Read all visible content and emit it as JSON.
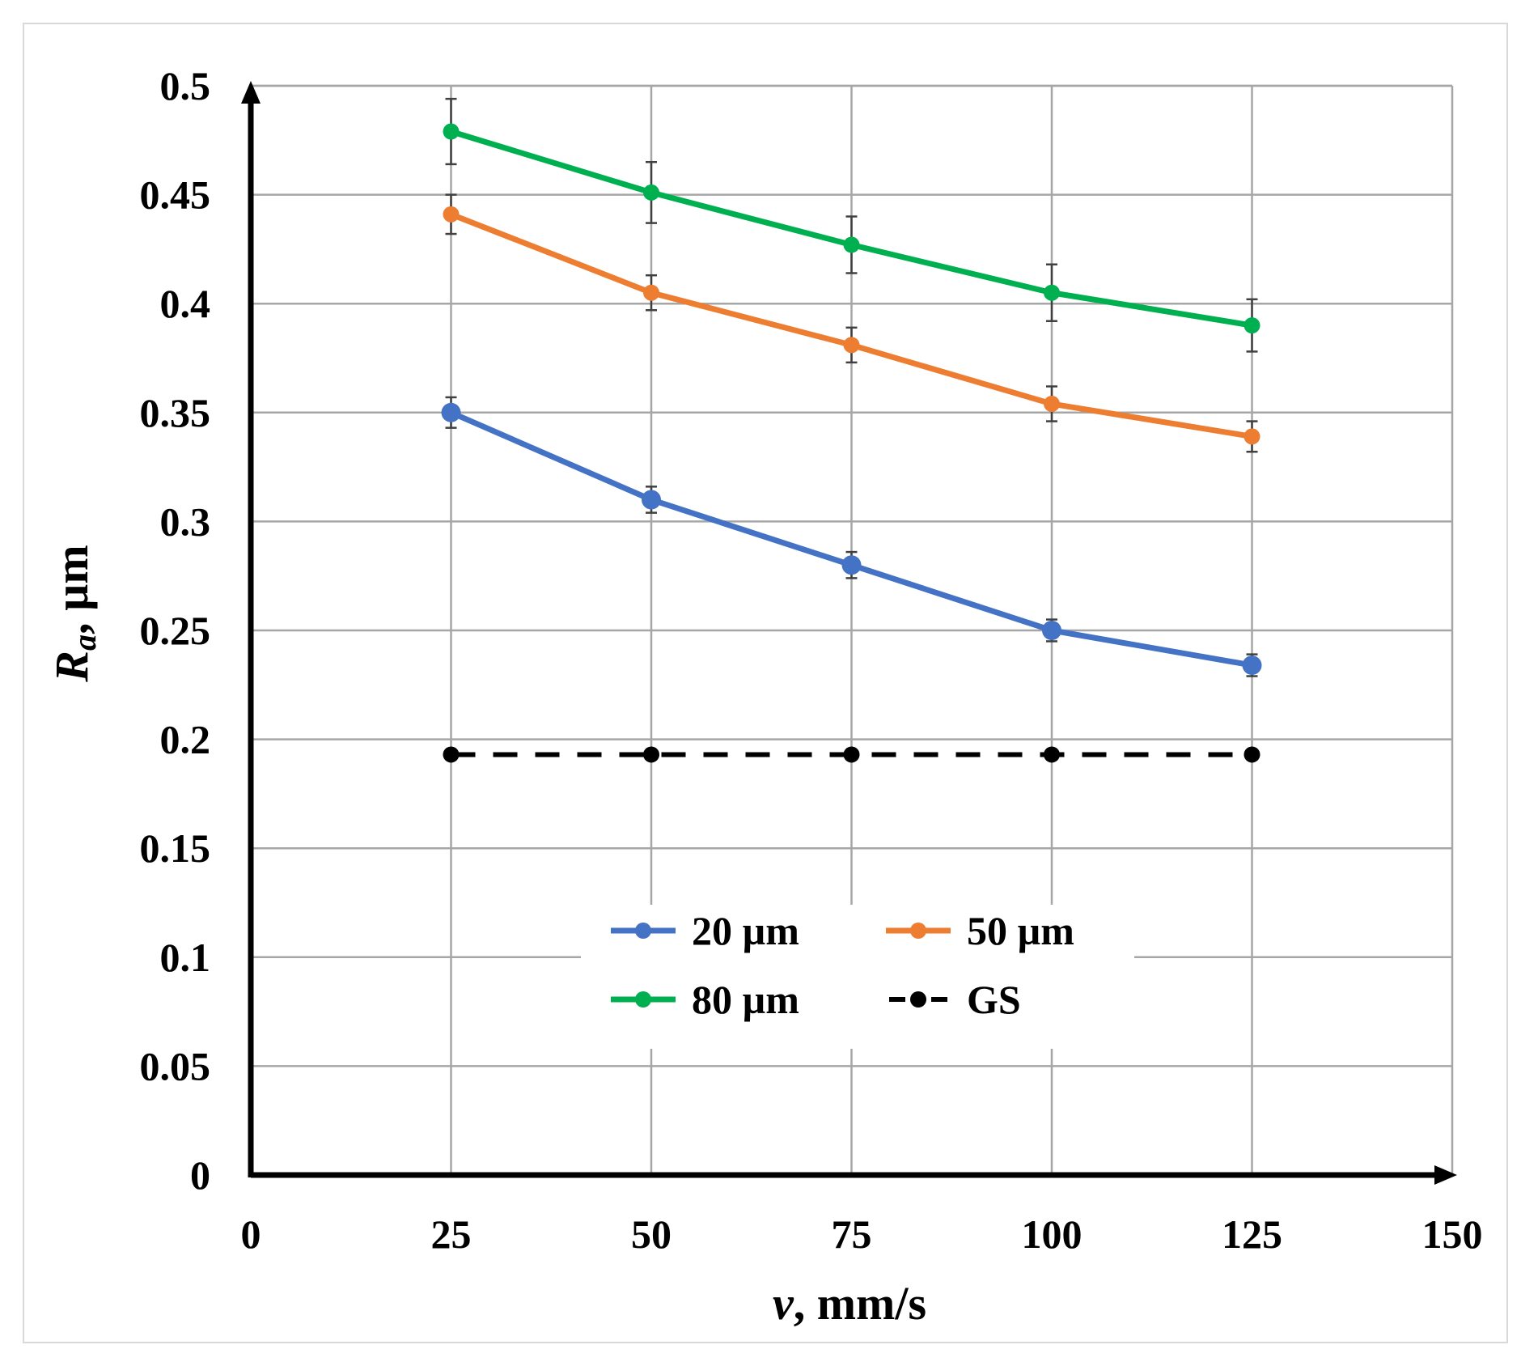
{
  "chart_data": {
    "type": "line",
    "x": [
      25,
      50,
      75,
      100,
      125
    ],
    "xlim": [
      0,
      150
    ],
    "ylim": [
      0,
      0.5
    ],
    "xticks": [
      "0",
      "25",
      "50",
      "75",
      "100",
      "125",
      "150"
    ],
    "yticks": [
      "0",
      "0.05",
      "0.1",
      "0.15",
      "0.2",
      "0.25",
      "0.3",
      "0.35",
      "0.4",
      "0.45",
      "0.5"
    ],
    "xlabel_var": "v",
    "xlabel_unit": ", mm/s",
    "ylabel_var": "R",
    "ylabel_sub": "a",
    "ylabel_unit": ", µm",
    "grid": true,
    "legend_position": "lower-center",
    "series": [
      {
        "name": "20 µm",
        "color": "#4472C4",
        "values": [
          0.35,
          0.31,
          0.28,
          0.25,
          0.234
        ],
        "errors": [
          0.007,
          0.006,
          0.006,
          0.005,
          0.005
        ],
        "dashed": false
      },
      {
        "name": "50 µm",
        "color": "#ED7D31",
        "values": [
          0.441,
          0.405,
          0.381,
          0.354,
          0.339
        ],
        "errors": [
          0.009,
          0.008,
          0.008,
          0.008,
          0.007
        ],
        "dashed": false
      },
      {
        "name": "80 µm",
        "color": "#00B050",
        "values": [
          0.479,
          0.451,
          0.427,
          0.405,
          0.39
        ],
        "errors": [
          0.015,
          0.014,
          0.013,
          0.013,
          0.012
        ],
        "dashed": false
      },
      {
        "name": "GS",
        "color": "#000000",
        "values": [
          0.193,
          0.193,
          0.193,
          0.193,
          0.193
        ],
        "errors": [],
        "dashed": true
      }
    ]
  }
}
